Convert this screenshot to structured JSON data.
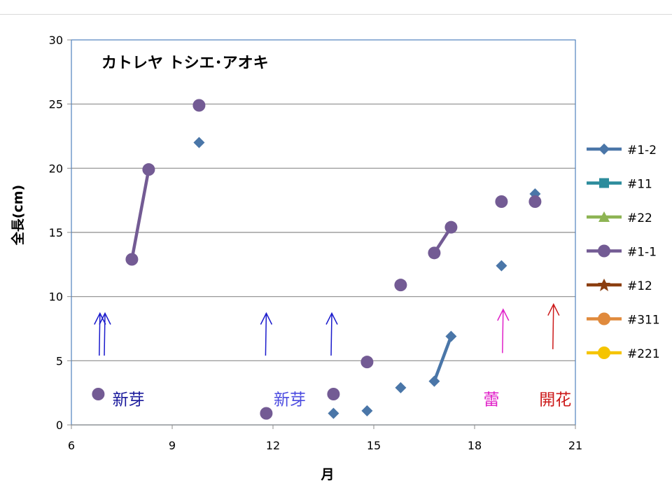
{
  "chart_data": {
    "type": "scatter",
    "title": "カトレヤ トシエ･アオキ",
    "xlabel": "月",
    "ylabel": "全長(cm)",
    "xlim": [
      6,
      21
    ],
    "ylim": [
      0,
      30
    ],
    "xticks": [
      6,
      9,
      12,
      15,
      18,
      21
    ],
    "yticks": [
      0,
      5,
      10,
      15,
      20,
      25,
      30
    ],
    "grid": "horizontal",
    "legend_position": "right",
    "series": [
      {
        "name": "#1-2",
        "color": "#4a76a8",
        "marker": "diamond",
        "points": [
          [
            9.8,
            22.0
          ],
          [
            13.8,
            0.9
          ],
          [
            14.8,
            1.1
          ],
          [
            15.8,
            2.9
          ],
          [
            16.8,
            3.4
          ],
          [
            17.3,
            6.9
          ],
          [
            18.8,
            12.4
          ],
          [
            19.8,
            18.0
          ]
        ],
        "segments": [
          [
            [
              16.8,
              3.4
            ],
            [
              17.3,
              6.9
            ]
          ]
        ]
      },
      {
        "name": "#11",
        "color": "#2c8c9c",
        "marker": "square",
        "points": [],
        "segments": []
      },
      {
        "name": "#22",
        "color": "#8db453",
        "marker": "triangle",
        "points": [],
        "segments": []
      },
      {
        "name": "#1-1",
        "color": "#735b94",
        "marker": "circle",
        "points": [
          [
            6.8,
            2.4
          ],
          [
            7.8,
            12.9
          ],
          [
            8.3,
            19.9
          ],
          [
            9.8,
            24.9
          ],
          [
            11.8,
            0.9
          ],
          [
            13.8,
            2.4
          ],
          [
            14.8,
            4.9
          ],
          [
            15.8,
            10.9
          ],
          [
            16.8,
            13.4
          ],
          [
            17.3,
            15.4
          ],
          [
            18.8,
            17.4
          ],
          [
            19.8,
            17.4
          ]
        ],
        "segments": [
          [
            [
              7.8,
              12.9
            ],
            [
              8.3,
              19.9
            ]
          ],
          [
            [
              16.8,
              13.4
            ],
            [
              17.3,
              15.4
            ]
          ]
        ]
      },
      {
        "name": "#12",
        "color": "#8b3e0f",
        "marker": "star",
        "points": [],
        "segments": []
      },
      {
        "name": "#311",
        "color": "#e08a3c",
        "marker": "circle",
        "points": [],
        "segments": []
      },
      {
        "name": "#221",
        "color": "#f5c400",
        "marker": "circle",
        "points": [],
        "segments": []
      }
    ],
    "annotations": [
      {
        "text": "新芽",
        "x": 7.7,
        "y": 2.0,
        "color": "#1a1a9c"
      },
      {
        "text": "新芽",
        "x": 12.5,
        "y": 2.0,
        "color": "#4b4be0"
      },
      {
        "text": "蕾",
        "x": 18.5,
        "y": 2.0,
        "color": "#e020c8"
      },
      {
        "text": "開花",
        "x": 20.4,
        "y": 2.0,
        "color": "#cc1a1a"
      }
    ],
    "arrows": [
      {
        "x": 6.85,
        "y_from": 5.4,
        "y_to": 8.7,
        "color": "#1a1acc"
      },
      {
        "x": 7.0,
        "y_from": 5.4,
        "y_to": 8.7,
        "color": "#1a1acc"
      },
      {
        "x": 11.8,
        "y_from": 5.4,
        "y_to": 8.7,
        "color": "#1a1acc"
      },
      {
        "x": 13.75,
        "y_from": 5.4,
        "y_to": 8.7,
        "color": "#1a1acc"
      },
      {
        "x": 18.85,
        "y_from": 5.6,
        "y_to": 9.0,
        "color": "#e020c8"
      },
      {
        "x": 20.35,
        "y_from": 5.9,
        "y_to": 9.4,
        "color": "#cc1a1a"
      }
    ]
  }
}
